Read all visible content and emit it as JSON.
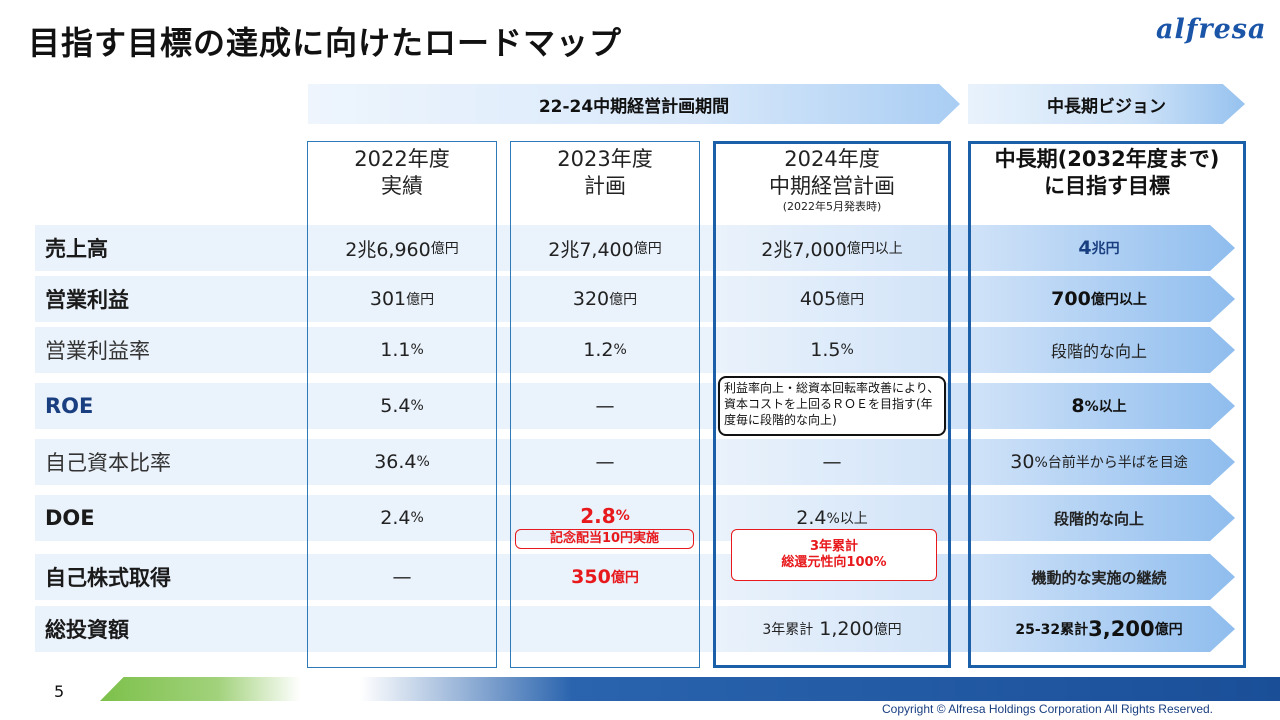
{
  "title": "目指す目標の達成に向けたロードマップ",
  "logo": "alfresa",
  "header": {
    "period_label": "22-24中期経営計画期間",
    "vision_label": "中長期ビジョン"
  },
  "columns": {
    "c2022": {
      "line1": "2022年度",
      "line2": "実績"
    },
    "c2023": {
      "line1": "2023年度",
      "line2": "計画"
    },
    "c2024": {
      "line1": "2024年度",
      "line2": "中期経営計画",
      "note": "(2022年5月発表時)"
    },
    "vision": {
      "line1": "中長期(2032年度まで)",
      "line2": "に目指す目標"
    }
  },
  "rows": {
    "sales": {
      "label": "売上高",
      "v2022": "2兆6,960",
      "u2022": "億円",
      "v2023": "2兆7,400",
      "u2023": "億円",
      "v2024": "2兆7,000",
      "u2024": "億円以上",
      "vision": "4",
      "vision_u": "兆円"
    },
    "op": {
      "label": "営業利益",
      "v2022": "301",
      "u2022": "億円",
      "v2023": "320",
      "u2023": "億円",
      "v2024": "405",
      "u2024": "億円",
      "vision": "700",
      "vision_u": "億円以上"
    },
    "margin": {
      "label": "営業利益率",
      "v2022": "1.1",
      "u2022": "%",
      "v2023": "1.2",
      "u2023": "%",
      "v2024": "1.5",
      "u2024": "%",
      "vision": "段階的な向上"
    },
    "roe": {
      "label": "ROE",
      "v2022": "5.4",
      "u2022": "%",
      "v2023": "—",
      "note2024": "利益率向上・総資本回転率改善により、資本コストを上回るＲＯＥを目指す(年度毎に段階的な向上)",
      "vision": "8",
      "vision_u": "%以上"
    },
    "equity": {
      "label": "自己資本比率",
      "v2022": "36.4",
      "u2022": "%",
      "v2023": "—",
      "v2024": "—",
      "vision": "30",
      "vision_u": "%台前半から半ばを目途"
    },
    "doe": {
      "label": "DOE",
      "v2022": "2.4",
      "u2022": "%",
      "v2023": "2.8",
      "u2023": "%",
      "note2023": "記念配当10円実施",
      "v2024": "2.4",
      "u2024": "%以上",
      "vision": "段階的な向上"
    },
    "buyback": {
      "label": "自己株式取得",
      "v2022": "—",
      "v2023": "350",
      "u2023": "億円",
      "note2024_line1": "3年累計",
      "note2024_line2": "総還元性向100%",
      "vision": "機動的な実施の継続"
    },
    "invest": {
      "label": "総投資額",
      "p2024": "3年累計",
      "v2024": "1,200",
      "u2024": "億円",
      "vision_p": "25-32累計",
      "vision": "3,200",
      "vision_u": "億円"
    }
  },
  "footer": {
    "page": "5",
    "copyright": "Copyright © Alfresa Holdings Corporation All Rights Reserved."
  },
  "colors": {
    "accent": "#1a5fa8",
    "highlight_red": "#e8191c",
    "band": "#eaf2fb"
  }
}
